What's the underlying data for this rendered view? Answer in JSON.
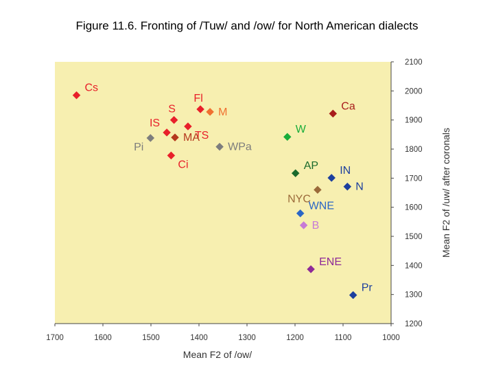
{
  "figure": {
    "title": "Figure 11.6. Fronting of /Tuw/ and /ow/ for North American dialects"
  },
  "chart_data": {
    "type": "scatter",
    "xlabel": "Mean F2 of /ow/",
    "ylabel": "Mean F2 of /uw/ after coronals",
    "xlim": [
      1700,
      1000
    ],
    "ylim": [
      1200,
      2100
    ],
    "x_ticks": [
      "1700",
      "1600",
      "1500",
      "1400",
      "1300",
      "1200",
      "1100",
      "1000"
    ],
    "y_ticks": [
      "1200",
      "1300",
      "1400",
      "1500",
      "1600",
      "1700",
      "1800",
      "1900",
      "2000",
      "2100"
    ],
    "background": "#f7efb0",
    "grid": false,
    "points": [
      {
        "label": "Cs",
        "x": 1655,
        "y": 1985,
        "color": "#e8202a",
        "label_pos": "upper-right"
      },
      {
        "label": "Fl",
        "x": 1397,
        "y": 1937,
        "color": "#e8202a",
        "label_pos": "above"
      },
      {
        "label": "M",
        "x": 1377,
        "y": 1928,
        "color": "#f07030",
        "label_pos": "right"
      },
      {
        "label": "S",
        "x": 1452,
        "y": 1900,
        "color": "#e8202a",
        "label_pos": "above"
      },
      {
        "label": "IS",
        "x": 1467,
        "y": 1857,
        "color": "#e8202a",
        "label_pos": "upper-left"
      },
      {
        "label": "TS",
        "x": 1423,
        "y": 1878,
        "color": "#e8202a",
        "label_pos": "lower-right"
      },
      {
        "label": "MA",
        "x": 1450,
        "y": 1840,
        "color": "#b5381e",
        "label_pos": "right"
      },
      {
        "label": "Pi",
        "x": 1501,
        "y": 1838,
        "color": "#7d7d7d",
        "label_pos": "lower-left"
      },
      {
        "label": "WPa",
        "x": 1357,
        "y": 1808,
        "color": "#7d7d7d",
        "label_pos": "right"
      },
      {
        "label": "Ci",
        "x": 1458,
        "y": 1778,
        "color": "#e8202a",
        "label_pos": "lower-right"
      },
      {
        "label": "Ca",
        "x": 1121,
        "y": 1922,
        "color": "#a81c1c",
        "label_pos": "upper-right"
      },
      {
        "label": "W",
        "x": 1216,
        "y": 1842,
        "color": "#1aad3a",
        "label_pos": "upper-right"
      },
      {
        "label": "AP",
        "x": 1199,
        "y": 1717,
        "color": "#1a6a2c",
        "label_pos": "upper-right"
      },
      {
        "label": "IN",
        "x": 1124,
        "y": 1701,
        "color": "#1c3f9e",
        "label_pos": "upper-right"
      },
      {
        "label": "N",
        "x": 1091,
        "y": 1671,
        "color": "#1c3f9e",
        "label_pos": "right"
      },
      {
        "label": "NYC",
        "x": 1153,
        "y": 1660,
        "color": "#9b6a3a",
        "label_pos": "lower-left"
      },
      {
        "label": "WNE",
        "x": 1189,
        "y": 1579,
        "color": "#2a66c6",
        "label_pos": "upper-right"
      },
      {
        "label": "B",
        "x": 1182,
        "y": 1538,
        "color": "#c77ad6",
        "label_pos": "right"
      },
      {
        "label": "ENE",
        "x": 1167,
        "y": 1387,
        "color": "#8e2a98",
        "label_pos": "upper-right"
      },
      {
        "label": "Pr",
        "x": 1079,
        "y": 1298,
        "color": "#1c3f9e",
        "label_pos": "upper-right"
      }
    ]
  }
}
